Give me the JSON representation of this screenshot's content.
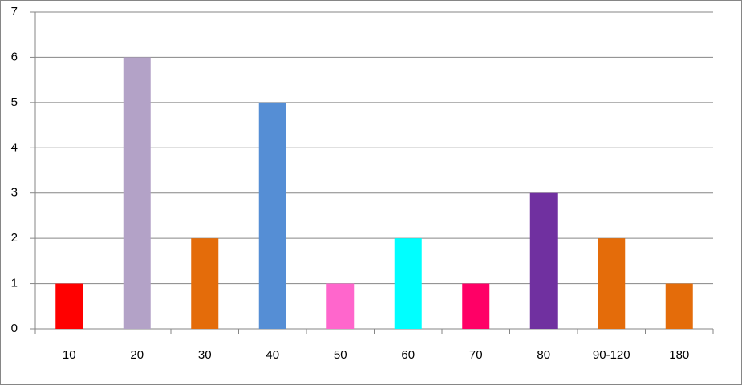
{
  "chart_data": {
    "type": "bar",
    "categories": [
      "10",
      "20",
      "30",
      "40",
      "50",
      "60",
      "70",
      "80",
      "90-120",
      "180"
    ],
    "values": [
      1,
      6,
      2,
      5,
      1,
      2,
      1,
      3,
      2,
      1
    ],
    "colors": [
      "#ff0000",
      "#b3a2c7",
      "#e46c0a",
      "#558ed5",
      "#ff66cc",
      "#00ffff",
      "#ff0066",
      "#7030a0",
      "#e46c0a",
      "#e46c0a"
    ],
    "ylim": [
      0,
      7
    ],
    "yticks": [
      0,
      1,
      2,
      3,
      4,
      5,
      6,
      7
    ],
    "grid": true
  }
}
